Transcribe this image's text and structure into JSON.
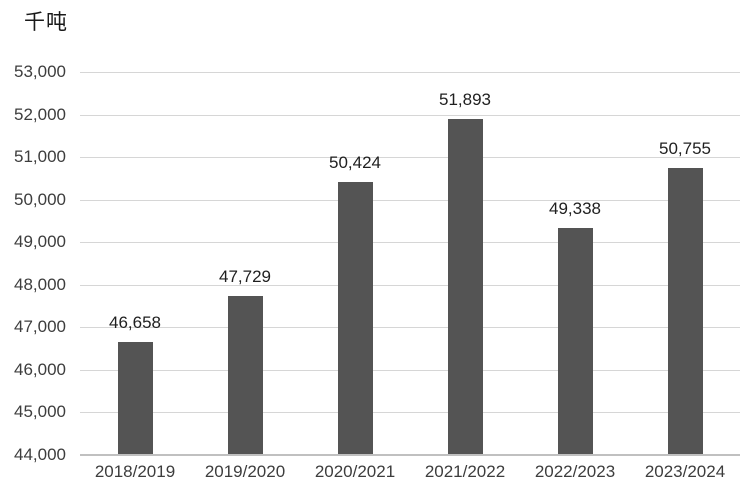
{
  "chart_data": {
    "type": "bar",
    "title": "千吨",
    "unit_label": "千吨",
    "categories": [
      "2018/2019",
      "2019/2020",
      "2020/2021",
      "2021/2022",
      "2022/2023",
      "2023/2024"
    ],
    "values": [
      46658,
      47729,
      50424,
      51893,
      49338,
      50755
    ],
    "value_labels": [
      "46,658",
      "47,729",
      "50,424",
      "51,893",
      "49,338",
      "50,755"
    ],
    "xlabel": "",
    "ylabel": "千吨",
    "ylim": [
      44000,
      53000
    ],
    "ytick_step": 1000,
    "ytick_values": [
      44000,
      45000,
      46000,
      47000,
      48000,
      49000,
      50000,
      51000,
      52000,
      53000
    ],
    "ytick_labels": [
      "44,000",
      "45,000",
      "46,000",
      "47,000",
      "48,000",
      "49,000",
      "50,000",
      "51,000",
      "52,000",
      "53,000"
    ],
    "grid": true,
    "legend": false,
    "colors": {
      "bar": "#545454",
      "gridline": "#d6d6d6",
      "axis_line": "#c0c0c0",
      "tick_text": "#3d3d3d",
      "label_text": "#1f1f1f",
      "background": "#ffffff"
    }
  }
}
